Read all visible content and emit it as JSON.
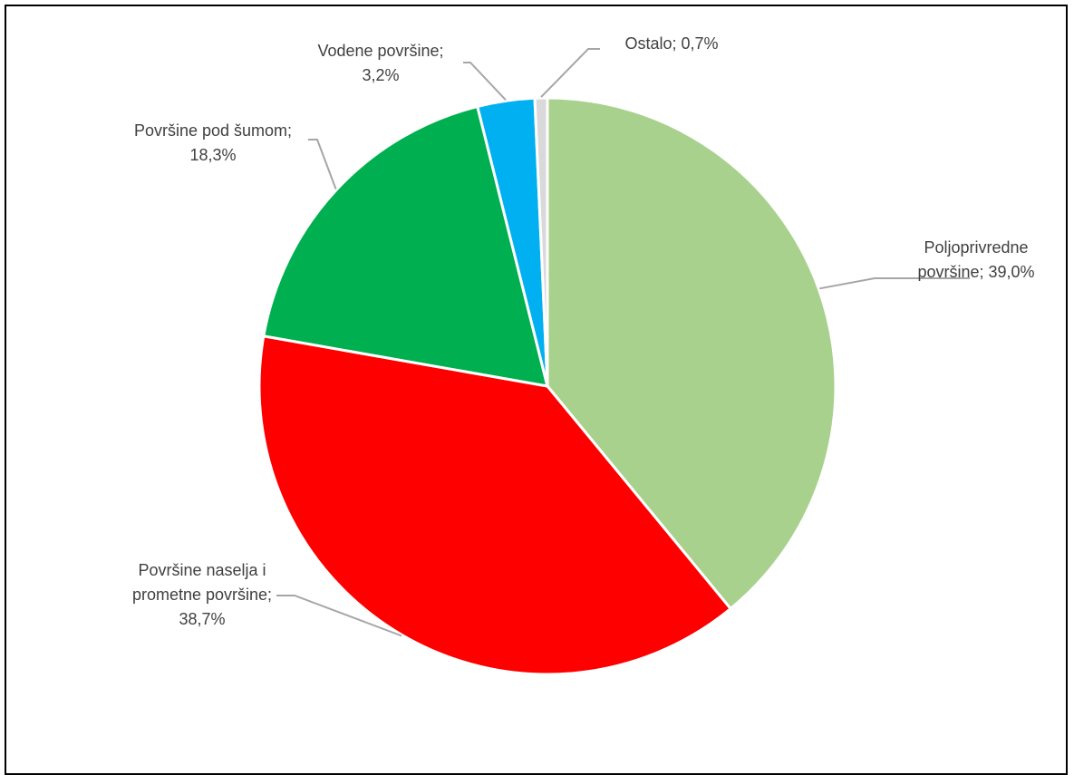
{
  "chart_data": {
    "type": "pie",
    "title": "",
    "slices": [
      {
        "label_lines": [
          "Poljoprivredne",
          "površine; 39,0%"
        ],
        "category": "Poljoprivredne površine",
        "value": 39.0,
        "color": "#A9D18E"
      },
      {
        "label_lines": [
          "Površine naselja i",
          "prometne površine;",
          "38,7%"
        ],
        "category": "Površine naselja i prometne površine",
        "value": 38.7,
        "color": "#FF0000"
      },
      {
        "label_lines": [
          "Površine pod šumom;",
          "18,3%"
        ],
        "category": "Površine pod šumom",
        "value": 18.3,
        "color": "#00B050"
      },
      {
        "label_lines": [
          "Vodene površine;",
          "3,2%"
        ],
        "category": "Vodene površine",
        "value": 3.2,
        "color": "#00B0F0"
      },
      {
        "label_lines": [
          "Ostalo; 0,7%"
        ],
        "category": "Ostalo",
        "value": 0.7,
        "color": "#D9D9D9"
      }
    ],
    "leader_line_color": "#A6A6A6",
    "slice_border_color": "#FFFFFF"
  }
}
